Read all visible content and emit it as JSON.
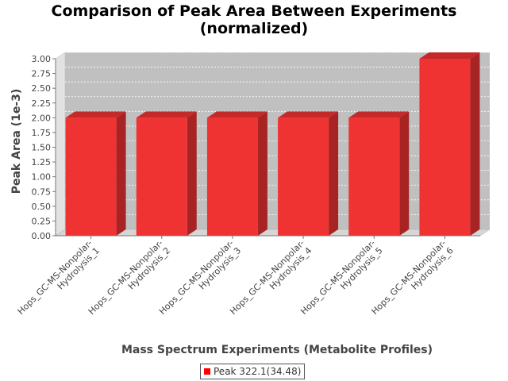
{
  "chart_data": {
    "type": "bar",
    "title": "Comparison of Peak Area Between Experiments",
    "subtitle": "(normalized)",
    "xlabel": "Mass Spectrum Experiments (Metabolite Profiles)",
    "ylabel": "Peak Area (1e-3)",
    "categories": [
      "Hops_GC-MS-Nonpolar-Hydrolysis_1",
      "Hops_GC-MS-Nonpolar-Hydrolysis_2",
      "Hops_GC-MS-Nonpolar-Hydrolysis_3",
      "Hops_GC-MS-Nonpolar-Hydrolysis_4",
      "Hops_GC-MS-Nonpolar-Hydrolysis_5",
      "Hops_GC-MS-Nonpolar-Hydrolysis_6"
    ],
    "category_label_lines": [
      [
        "Hops_GC-MS-Nonpolar-",
        "Hydrolysis_1"
      ],
      [
        "Hops_GC-MS-Nonpolar-",
        "Hydrolysis_2"
      ],
      [
        "Hops_GC-MS-Nonpolar-",
        "Hydrolysis_3"
      ],
      [
        "Hops_GC-MS-Nonpolar-",
        "Hydrolysis_4"
      ],
      [
        "Hops_GC-MS-Nonpolar-",
        "Hydrolysis_5"
      ],
      [
        "Hops_GC-MS-Nonpolar-",
        "Hydrolysis_6"
      ]
    ],
    "series": [
      {
        "name": "Peak 322.1(34.48)",
        "values": [
          2.0,
          2.0,
          2.0,
          2.0,
          2.0,
          3.0
        ]
      }
    ],
    "ylim": [
      0,
      3.0
    ],
    "yticks": [
      "0.00",
      "0.25",
      "0.50",
      "0.75",
      "1.00",
      "1.25",
      "1.50",
      "1.75",
      "2.00",
      "2.25",
      "2.50",
      "2.75",
      "3.00"
    ],
    "grid": true,
    "style": "3d",
    "legend_position": "bottom",
    "colors": {
      "bar_front": "#ef3333",
      "bar_top": "#c42a2a",
      "bar_side": "#a82424",
      "plot_back": "#c0c0c0",
      "plot_floor": "#d6d6d6",
      "plot_wall": "#e2e2e2",
      "legend_swatch": "#ff0000"
    }
  }
}
